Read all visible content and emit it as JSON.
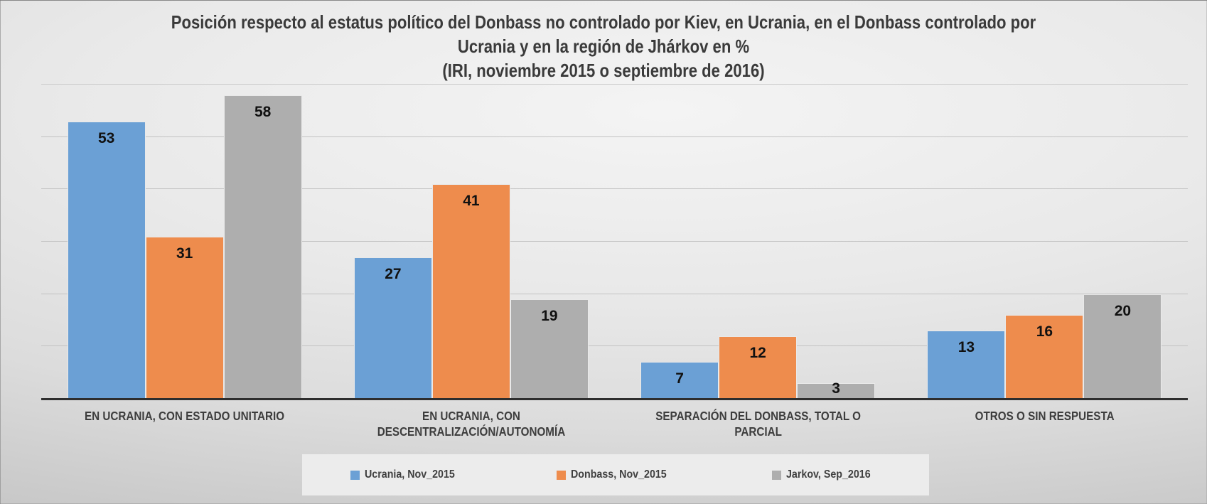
{
  "chart_data": {
    "type": "bar",
    "title": "Posición respecto al estatus político del Donbass no controlado por Kiev, en Ucrania, en el Donbass controlado por Ucrania y en la región de Jhárkov en % (IRI, noviembre 2015 o septiembre de 2016)",
    "title_lines": [
      "Posición respecto al estatus político del Donbass no controlado por Kiev, en Ucrania, en el Donbass controlado por",
      "Ucrania y en la región de Jhárkov en %",
      "(IRI, noviembre 2015 o septiembre de 2016)"
    ],
    "categories": [
      "EN UCRANIA, CON ESTADO UNITARIO",
      "EN UCRANIA, CON\nDESCENTRALIZACIÓN/AUTONOMÍA",
      "SEPARACIÓN DEL DONBASS, TOTAL O PARCIAL",
      "OTROS O SIN RESPUESTA"
    ],
    "series": [
      {
        "name": "Ucrania, Nov_2015",
        "color": "#6BA0D5",
        "values": [
          53,
          27,
          7,
          13
        ]
      },
      {
        "name": "Donbass, Nov_2015",
        "color": "#EE8C4D",
        "values": [
          31,
          41,
          12,
          16
        ]
      },
      {
        "name": "Jarkov, Sep_2016",
        "color": "#AEAEAE",
        "values": [
          58,
          19,
          3,
          20
        ]
      }
    ],
    "ylim": [
      0,
      60
    ],
    "gridline_step": 10,
    "grid": true,
    "legend_position": "bottom",
    "data_labels": true,
    "colors": {
      "title_text": "#3a3a3a",
      "category_text": "#3d3d3d",
      "data_label_text": "#111111",
      "axis_line": "#2e2e2e",
      "gridline": "#c2c2c2",
      "legend_panel": "#ececec"
    }
  }
}
